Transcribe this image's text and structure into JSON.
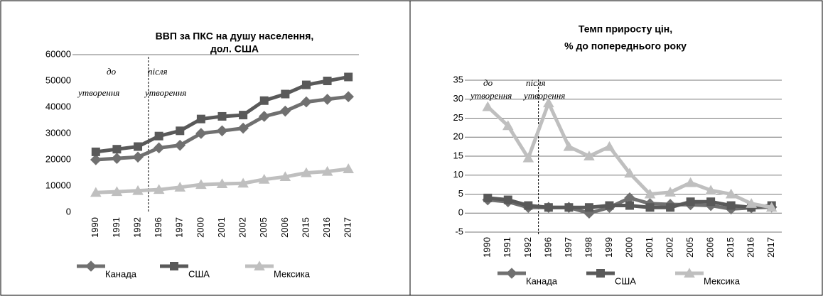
{
  "chart_data": [
    {
      "type": "line",
      "title": [
        "ВВП за ПКС на душу населення,",
        "дол. США"
      ],
      "categories": [
        "1990",
        "1991",
        "1992",
        "1996",
        "1997",
        "2000",
        "2001",
        "2002",
        "2005",
        "2006",
        "2015",
        "2016",
        "2017"
      ],
      "series": [
        {
          "name": "Канада",
          "color": "#707070",
          "marker": "diamond",
          "values": [
            20000,
            20500,
            21000,
            24500,
            25500,
            30000,
            31000,
            32000,
            36500,
            38500,
            42000,
            43000,
            44000
          ]
        },
        {
          "name": "США",
          "color": "#595959",
          "marker": "square",
          "values": [
            23000,
            24000,
            25000,
            29000,
            31000,
            35500,
            36500,
            37000,
            42500,
            45000,
            48500,
            50000,
            51500
          ]
        },
        {
          "name": "Мексика",
          "color": "#bfbfbf",
          "marker": "triangle",
          "values": [
            7500,
            7800,
            8200,
            8600,
            9500,
            10500,
            10800,
            11000,
            12500,
            13500,
            15000,
            15500,
            16500
          ]
        }
      ],
      "ylim": [
        0,
        60000
      ],
      "yticks": [
        0,
        10000,
        20000,
        30000,
        40000,
        50000,
        60000
      ],
      "grid": false,
      "annotations": [
        "до",
        "після",
        "утворення",
        "утворення"
      ]
    },
    {
      "type": "line",
      "title": [
        "Темп приросту цін,",
        "% до попереднього  року"
      ],
      "categories": [
        "1990",
        "1991",
        "1992",
        "1996",
        "1997",
        "1998",
        "1999",
        "2000",
        "2001",
        "2002",
        "2005",
        "2006",
        "2015",
        "2016",
        "2017"
      ],
      "series": [
        {
          "name": "Канада",
          "color": "#707070",
          "marker": "diamond",
          "values": [
            3.5,
            3,
            1.5,
            1.5,
            1.5,
            0,
            1.5,
            4,
            2.5,
            2.3,
            2.2,
            2,
            1.1,
            1.4,
            1.6
          ]
        },
        {
          "name": "США",
          "color": "#595959",
          "marker": "square",
          "values": [
            4,
            3.5,
            2,
            1.5,
            1.5,
            1.5,
            2,
            2,
            1.5,
            1.5,
            3,
            3,
            2,
            1.5,
            2
          ]
        },
        {
          "name": "Мексика",
          "color": "#bfbfbf",
          "marker": "triangle",
          "values": [
            28,
            23,
            14.5,
            29,
            17.5,
            15,
            17.5,
            10.5,
            5,
            5.5,
            8,
            6,
            5,
            2.5,
            1.5
          ]
        }
      ],
      "ylim": [
        -5,
        35
      ],
      "yticks": [
        -5,
        0,
        5,
        10,
        15,
        20,
        25,
        30,
        35
      ],
      "grid": true,
      "annotations": [
        "до",
        "після",
        "утворення",
        "утворення"
      ]
    }
  ]
}
